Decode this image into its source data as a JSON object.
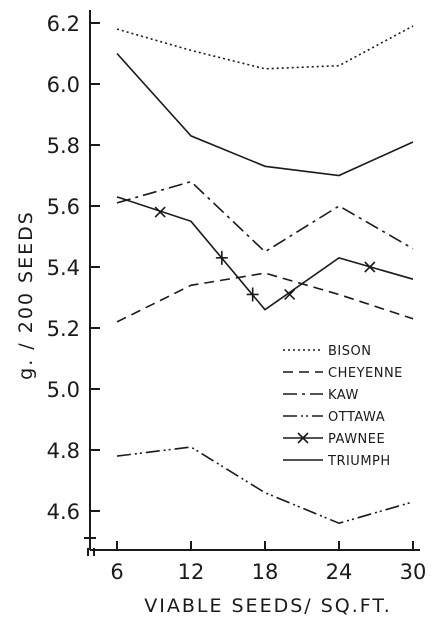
{
  "chart_data": {
    "type": "line",
    "xlabel": "VIABLE SEEDS/ SQ.FT.",
    "ylabel": "g. / 200 SEEDS",
    "x_ticks": [
      6,
      12,
      18,
      24,
      30
    ],
    "y_ticks": [
      "4.6",
      "4.8",
      "5.0",
      "5.2",
      "5.4",
      "5.6",
      "5.8",
      "6.0",
      "6.2"
    ],
    "xlim": [
      5,
      30
    ],
    "ylim": [
      4.5,
      6.25
    ],
    "grid": false,
    "legend_position": "bottom-right",
    "series": [
      {
        "name": "BISON",
        "dash": "2,3",
        "x": [
          6,
          12,
          18,
          24,
          30
        ],
        "y": [
          6.18,
          6.11,
          6.05,
          6.06,
          6.19
        ]
      },
      {
        "name": "CHEYENNE",
        "dash": "10,6",
        "x": [
          6,
          12,
          18,
          24,
          30
        ],
        "y": [
          5.22,
          5.34,
          5.38,
          5.31,
          5.23
        ]
      },
      {
        "name": "KAW",
        "dash": "14,5,3,5",
        "x": [
          6,
          12,
          18,
          24,
          30
        ],
        "y": [
          5.61,
          5.68,
          5.45,
          5.6,
          5.46
        ]
      },
      {
        "name": "OTTAWA",
        "dash": "14,4,2,3,2,4",
        "x": [
          6,
          12,
          18,
          24,
          30
        ],
        "y": [
          4.78,
          4.81,
          4.66,
          4.56,
          4.63
        ]
      },
      {
        "name": "PAWNEE",
        "dash": "",
        "marker": "x",
        "x": [
          6,
          12,
          18,
          24,
          30
        ],
        "y": [
          5.63,
          5.55,
          5.26,
          5.43,
          5.36
        ],
        "marker_x": [
          9.5,
          14.5,
          17,
          20,
          26.5
        ],
        "marker_y": [
          5.58,
          5.43,
          5.31,
          5.31,
          5.4
        ]
      },
      {
        "name": "TRIUMPH",
        "dash": "",
        "x": [
          6,
          12,
          18,
          24,
          30
        ],
        "y": [
          6.1,
          5.83,
          5.73,
          5.7,
          5.81
        ]
      }
    ]
  }
}
